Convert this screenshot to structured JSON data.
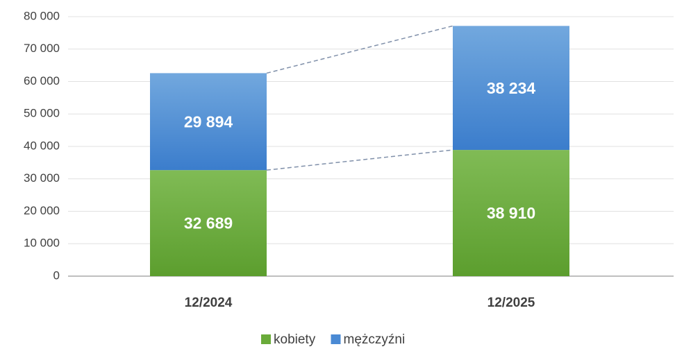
{
  "chart_data": {
    "type": "stacked_bar",
    "categories": [
      "12/2024",
      "12/2025"
    ],
    "series": [
      {
        "name": "kobiety",
        "color": "#6aab3a",
        "values": [
          32689,
          38910
        ],
        "value_labels": [
          "32 689",
          "38 910"
        ]
      },
      {
        "name": "mężczyźni",
        "color": "#4a8ad4",
        "values": [
          29894,
          38234
        ],
        "value_labels": [
          "29 894",
          "38 234"
        ]
      }
    ],
    "ylim": [
      0,
      80000
    ],
    "yticks": [
      0,
      {
        "value": 10000,
        "label": "10 000"
      },
      {
        "value": 20000,
        "label": "20 000"
      },
      {
        "value": 30000,
        "label": "30 000"
      },
      {
        "value": 40000,
        "label": "40 000"
      },
      {
        "value": 50000,
        "label": "50 000"
      },
      {
        "value": 60000,
        "label": "60 000"
      },
      {
        "value": 70000,
        "label": "70 000"
      },
      {
        "value": 80000,
        "label": "80 000"
      }
    ],
    "grid": true,
    "legend": "bottom"
  }
}
